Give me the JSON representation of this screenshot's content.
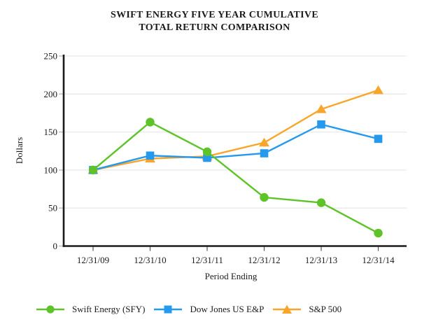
{
  "title": {
    "line1": "SWIFT ENERGY FIVE YEAR CUMULATIVE",
    "line2": "TOTAL RETURN COMPARISON"
  },
  "chart_data": {
    "type": "line",
    "categories": [
      "12/31/09",
      "12/31/10",
      "12/31/11",
      "12/31/12",
      "12/31/13",
      "12/31/14"
    ],
    "series": [
      {
        "name": "Swift Energy (SFY)",
        "marker": "circle",
        "color": "#5dc328",
        "values": [
          100,
          163,
          124,
          64,
          57,
          17
        ]
      },
      {
        "name": "Dow Jones US E&P",
        "marker": "square",
        "color": "#2499ee",
        "values": [
          100,
          119,
          116,
          122,
          160,
          141
        ]
      },
      {
        "name": "S&P 500",
        "marker": "triangle",
        "color": "#f8a62b",
        "values": [
          100,
          115,
          118,
          136,
          180,
          205
        ]
      }
    ],
    "xlabel": "Period Ending",
    "ylabel": "Dollars",
    "ylim": [
      0,
      250
    ],
    "y_ticks": [
      0,
      50,
      100,
      150,
      200,
      250
    ],
    "grid": "horizontal",
    "legend_position": "bottom"
  },
  "colors": {
    "axis": "#1a1a1a",
    "grid": "#e9e9e9",
    "y_tick": "#b3b3b3",
    "x_tick": "#555555",
    "background": "#ffffff",
    "text": "#1a1a1a"
  }
}
